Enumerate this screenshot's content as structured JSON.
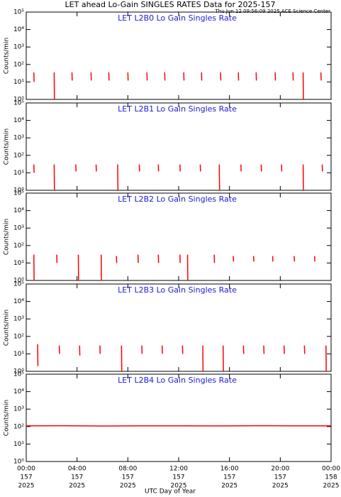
{
  "header": {
    "title": "LET ahead Lo-Gain SINGLES RATES Data for 2025-157",
    "subtitle": "Thu Jun 12 09:56:09 2025 ACE Science Center",
    "xlabel": "UTC Day of Year"
  },
  "chart_data": [
    {
      "type": "line",
      "title": "LET L2B0 Lo Gain Singles Rate",
      "ylabel": "Counts/min",
      "log": true,
      "xlim": [
        0,
        24
      ],
      "ylim": [
        1,
        100000
      ],
      "xticks": [
        0,
        4,
        8,
        12,
        16,
        20,
        24
      ],
      "yticks": [
        {
          "value": 1,
          "label": "10⁰"
        },
        {
          "value": 10,
          "label": "10¹"
        },
        {
          "value": 100,
          "label": "10²"
        },
        {
          "value": 1000,
          "label": "10³"
        },
        {
          "value": 10000,
          "label": "10⁴"
        },
        {
          "value": 100000,
          "label": "10⁵"
        }
      ],
      "x": [
        0.6,
        0.62,
        null,
        2.2,
        2.22,
        null,
        3.6,
        3.62,
        null,
        5.1,
        5.12,
        null,
        6.5,
        6.52,
        null,
        8.0,
        8.02,
        null,
        9.5,
        9.52,
        null,
        10.9,
        10.92,
        null,
        12.4,
        12.42,
        null,
        13.8,
        13.82,
        null,
        15.3,
        15.32,
        null,
        16.7,
        16.72,
        null,
        18.1,
        18.12,
        null,
        19.6,
        19.62,
        null,
        21.0,
        21.02,
        null,
        21.8,
        21.82,
        null,
        23.2,
        23.22
      ],
      "series": [
        {
          "color": "#ff0000",
          "values": [
            35,
            10,
            null,
            35,
            1,
            null,
            35,
            12,
            null,
            35,
            12,
            null,
            35,
            12,
            null,
            35,
            12,
            null,
            35,
            12,
            null,
            35,
            12,
            null,
            35,
            12,
            null,
            35,
            12,
            null,
            35,
            12,
            null,
            35,
            12,
            null,
            35,
            12,
            null,
            35,
            12,
            null,
            35,
            12,
            null,
            35,
            1,
            null,
            35,
            12
          ]
        }
      ]
    },
    {
      "type": "line",
      "title": "LET L2B1 Lo Gain Singles Rate",
      "ylabel": "Counts/min",
      "log": true,
      "xlim": [
        0,
        24
      ],
      "ylim": [
        1,
        100000
      ],
      "xticks": [
        0,
        4,
        8,
        12,
        16,
        20,
        24
      ],
      "yticks": [
        {
          "value": 1,
          "label": "10⁰"
        },
        {
          "value": 10,
          "label": "10¹"
        },
        {
          "value": 100,
          "label": "10²"
        },
        {
          "value": 1000,
          "label": "10³"
        },
        {
          "value": 10000,
          "label": "10⁴"
        },
        {
          "value": 100000,
          "label": "10⁵"
        }
      ],
      "x": [
        0.6,
        0.62,
        null,
        2.2,
        2.22,
        null,
        3.9,
        3.92,
        null,
        5.5,
        5.52,
        null,
        7.2,
        7.22,
        null,
        8.9,
        8.92,
        null,
        10.4,
        10.42,
        null,
        12.1,
        12.12,
        null,
        13.7,
        13.72,
        null,
        15.2,
        15.22,
        null,
        16.9,
        16.92,
        null,
        18.5,
        18.52,
        null,
        20.1,
        20.12,
        null,
        21.8,
        21.82,
        null,
        23.3,
        23.32
      ],
      "series": [
        {
          "color": "#ff0000",
          "values": [
            30,
            10,
            null,
            30,
            1,
            null,
            30,
            12,
            null,
            30,
            12,
            null,
            30,
            1,
            null,
            30,
            12,
            null,
            30,
            12,
            null,
            30,
            12,
            null,
            30,
            12,
            null,
            30,
            1,
            null,
            30,
            12,
            null,
            30,
            12,
            null,
            30,
            12,
            null,
            30,
            1,
            null,
            30,
            12
          ]
        }
      ]
    },
    {
      "type": "line",
      "title": "LET L2B2 Lo Gain Singles Rate",
      "ylabel": "Counts/min",
      "log": true,
      "xlim": [
        0,
        24
      ],
      "ylim": [
        1,
        100000
      ],
      "xticks": [
        0,
        4,
        8,
        12,
        16,
        20,
        24
      ],
      "yticks": [
        {
          "value": 1,
          "label": "10⁰"
        },
        {
          "value": 10,
          "label": "10¹"
        },
        {
          "value": 100,
          "label": "10²"
        },
        {
          "value": 1000,
          "label": "10³"
        },
        {
          "value": 10000,
          "label": "10⁴"
        },
        {
          "value": 100000,
          "label": "10⁵"
        }
      ],
      "x": [
        0.6,
        0.62,
        null,
        2.4,
        2.42,
        null,
        4.1,
        4.12,
        null,
        5.9,
        5.92,
        null,
        7.1,
        7.12,
        null,
        8.8,
        8.82,
        null,
        10.4,
        10.42,
        null,
        12.1,
        12.12,
        null,
        12.7,
        12.72,
        null,
        14.8,
        14.82,
        null,
        16.3,
        16.32,
        null,
        17.9,
        17.92,
        null,
        19.4,
        19.42,
        null,
        21.1,
        21.12,
        null,
        22.7,
        22.72
      ],
      "series": [
        {
          "color": "#ff0000",
          "values": [
            30,
            1,
            null,
            30,
            10,
            null,
            30,
            1,
            null,
            30,
            1,
            null,
            25,
            10,
            null,
            30,
            10,
            null,
            30,
            10,
            null,
            30,
            10,
            null,
            30,
            1,
            null,
            30,
            10,
            null,
            25,
            12,
            null,
            25,
            12,
            null,
            25,
            12,
            null,
            25,
            12,
            null,
            25,
            12
          ]
        }
      ]
    },
    {
      "type": "line",
      "title": "LET L2B3 Lo Gain Singles Rate",
      "ylabel": "Counts/min",
      "log": true,
      "xlim": [
        0,
        24
      ],
      "ylim": [
        1,
        100000
      ],
      "xticks": [
        0,
        4,
        8,
        12,
        16,
        20,
        24
      ],
      "yticks": [
        {
          "value": 1,
          "label": "10⁰"
        },
        {
          "value": 10,
          "label": "10¹"
        },
        {
          "value": 100,
          "label": "10²"
        },
        {
          "value": 1000,
          "label": "10³"
        },
        {
          "value": 10000,
          "label": "10⁴"
        },
        {
          "value": 100000,
          "label": "10⁵"
        }
      ],
      "x": [
        0.9,
        0.92,
        null,
        2.6,
        2.62,
        null,
        4.2,
        4.22,
        null,
        5.8,
        5.82,
        null,
        7.5,
        7.52,
        null,
        9.1,
        9.12,
        null,
        10.7,
        10.72,
        null,
        12.3,
        12.32,
        null,
        13.9,
        13.92,
        null,
        15.5,
        15.52,
        null,
        17.1,
        17.12,
        null,
        18.7,
        18.72,
        null,
        20.3,
        20.32,
        null,
        21.9,
        21.92,
        null,
        23.6,
        23.62
      ],
      "series": [
        {
          "color": "#ff0000",
          "values": [
            35,
            2,
            null,
            30,
            10,
            null,
            30,
            8,
            null,
            30,
            10,
            null,
            30,
            1,
            null,
            30,
            10,
            null,
            30,
            10,
            null,
            30,
            10,
            null,
            30,
            1,
            null,
            30,
            1,
            null,
            30,
            10,
            null,
            30,
            10,
            null,
            30,
            10,
            null,
            30,
            10,
            null,
            30,
            1
          ]
        }
      ]
    },
    {
      "type": "line",
      "title": "LET L2B4 Lo Gain Singles Rate",
      "ylabel": "Counts/min",
      "log": true,
      "xlim": [
        0,
        24
      ],
      "ylim": [
        1,
        100000
      ],
      "xticks": [
        {
          "value": 0,
          "label": "00:00"
        },
        {
          "value": 4,
          "label": "04:00"
        },
        {
          "value": 8,
          "label": "08:00"
        },
        {
          "value": 12,
          "label": "12:00"
        },
        {
          "value": 16,
          "label": "16:00"
        },
        {
          "value": 20,
          "label": "20:00"
        },
        {
          "value": 24,
          "label": "00:00"
        }
      ],
      "xtick_days": [
        "157",
        "157",
        "157",
        "157",
        "157",
        "157",
        "158"
      ],
      "xtick_years": [
        "2025",
        "2025",
        "2025",
        "2025",
        "2025",
        "2025",
        "2025"
      ],
      "yticks": [
        {
          "value": 1,
          "label": "10⁰"
        },
        {
          "value": 10,
          "label": "10¹"
        },
        {
          "value": 100,
          "label": "10²"
        },
        {
          "value": 1000,
          "label": "10³"
        },
        {
          "value": 10000,
          "label": "10⁴"
        },
        {
          "value": 100000,
          "label": "10⁵"
        }
      ],
      "x": [
        0,
        3,
        6,
        9,
        12,
        15,
        18,
        21,
        24
      ],
      "series": [
        {
          "color": "#ff0000",
          "values": [
            110,
            112,
            108,
            111,
            110,
            109,
            112,
            110,
            111
          ]
        }
      ]
    }
  ]
}
